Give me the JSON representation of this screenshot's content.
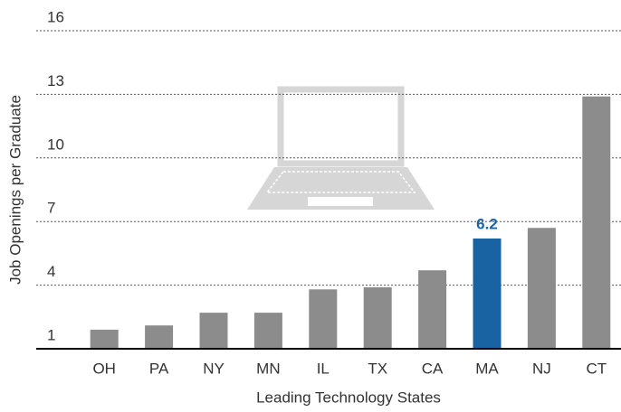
{
  "chart_data": {
    "type": "bar",
    "x_label": "Leading Technology States",
    "y_label": "Job Openings per Graduate",
    "categories": [
      "OH",
      "PA",
      "NY",
      "MN",
      "IL",
      "TX",
      "CA",
      "MA",
      "NJ",
      "CT"
    ],
    "values": [
      1.9,
      2.1,
      2.7,
      2.7,
      3.8,
      3.9,
      4.7,
      6.2,
      6.7,
      12.9
    ],
    "color": "#8c8c8c",
    "colors": [
      "#8c8c8c",
      "#8c8c8c",
      "#8c8c8c",
      "#8c8c8c",
      "#8c8c8c",
      "#8c8c8c",
      "#8c8c8c",
      "#1a63a3",
      "#8c8c8c",
      "#8c8c8c"
    ],
    "ylim": [
      1,
      16
    ],
    "yticks": [
      1,
      4,
      7,
      10,
      13,
      16
    ],
    "grid": true
  }
}
